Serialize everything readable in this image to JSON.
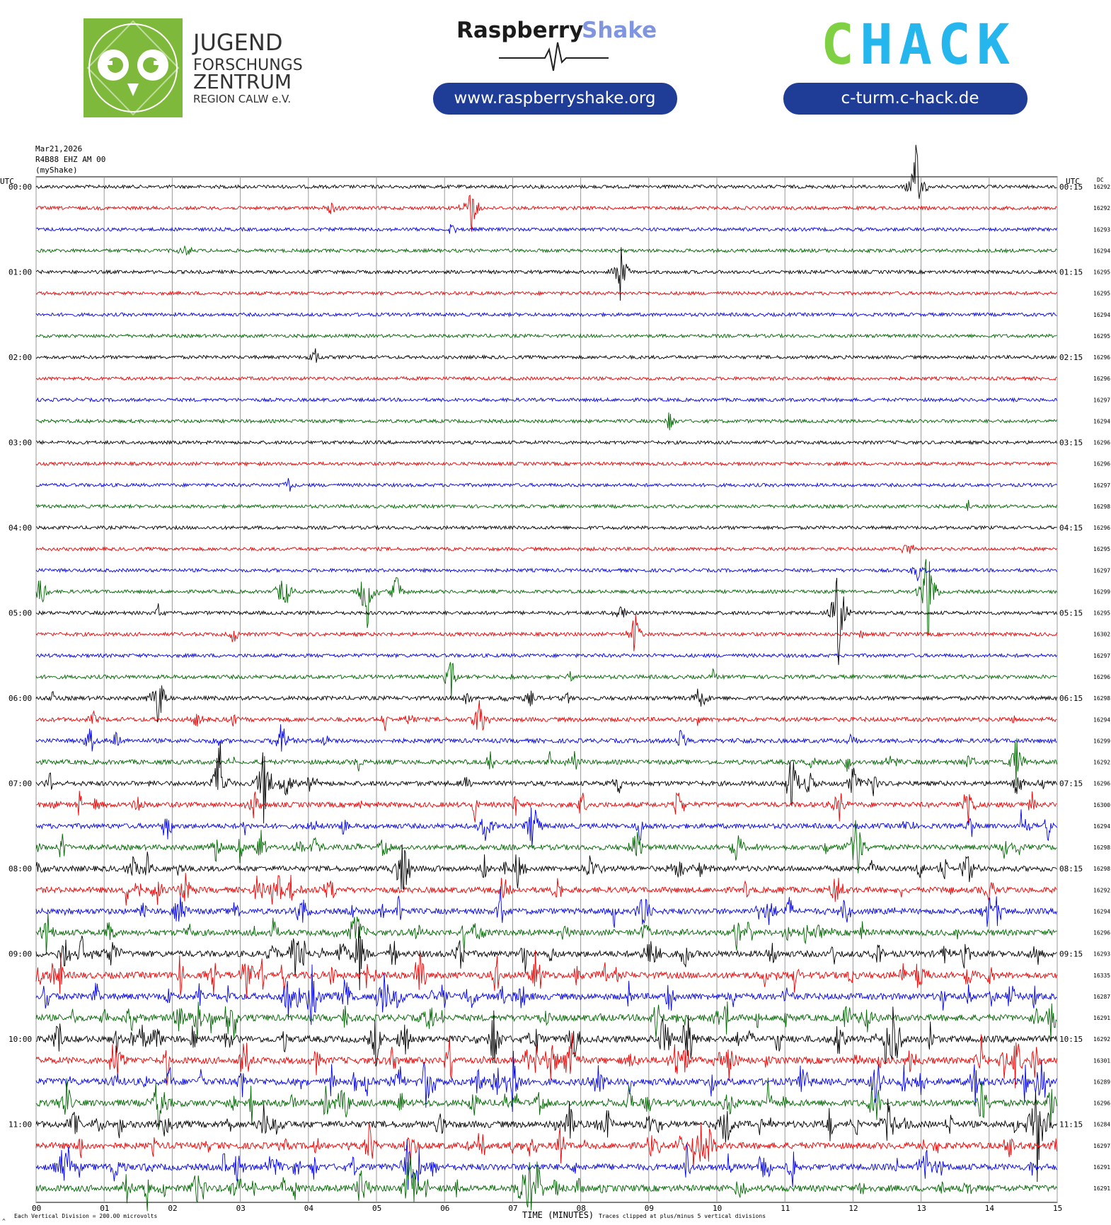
{
  "header": {
    "jfz": {
      "line1": "JUGEND",
      "line2": "FORSCHUNGS",
      "line3": "ZENTRUM",
      "line4": "REGION CALW e.V.",
      "color": "#7fb93b"
    },
    "rs": {
      "brand_a": "Raspberry",
      "brand_b": "Shake",
      "url": "www.raspberryshake.org",
      "accent": "#7f95e0",
      "pill": "#1f3d97"
    },
    "chack": {
      "c": "C",
      "h": "H",
      "a": "A",
      "c2": "C",
      "k": "K",
      "url": "c-turm.c-hack.de",
      "green": "#7fd043",
      "blue": "#25b6ee",
      "pill": "#1f3d97"
    }
  },
  "plot_info": {
    "date": "Mar21,2026",
    "station": "R4B88 EHZ AM 00",
    "source": "(myShake)",
    "left_axis_label": "UTC",
    "right_axis_label": "UTC",
    "dc_label": "DC",
    "x_axis_label": "TIME (MINUTES)",
    "footer_left": "Each Vertical Division =  200.00 microvolts",
    "footer_right": "Traces clipped at plus/minus 5 vertical divisions",
    "footer_mark": "^"
  },
  "chart_data": {
    "type": "line",
    "subtype": "helicorder",
    "xlim": [
      0,
      15
    ],
    "x_ticks": [
      "00",
      "01",
      "02",
      "03",
      "04",
      "05",
      "06",
      "07",
      "08",
      "09",
      "10",
      "11",
      "12",
      "13",
      "14",
      "15"
    ],
    "line_duration_minutes": 15,
    "trace_colors": [
      "#000000",
      "#ee0000",
      "#0000ee",
      "#006600"
    ],
    "left_hour_labels": [
      "00:00",
      "01:00",
      "02:00",
      "03:00",
      "04:00",
      "05:00",
      "06:00",
      "07:00",
      "08:00",
      "09:00",
      "10:00",
      "11:00"
    ],
    "right_hour_labels": [
      "00:15",
      "01:15",
      "02:15",
      "03:15",
      "04:15",
      "05:15",
      "06:15",
      "07:15",
      "08:15",
      "09:15",
      "10:15",
      "11:15"
    ],
    "dc_offsets": [
      16292,
      16292,
      16293,
      16294,
      16295,
      16295,
      16294,
      16295,
      16296,
      16296,
      16297,
      16294,
      16296,
      16296,
      16297,
      16298,
      16296,
      16295,
      16297,
      16299,
      16295,
      16302,
      16297,
      16296,
      16298,
      16294,
      16299,
      16292,
      16296,
      16300,
      16294,
      16298,
      16298,
      16292,
      16294,
      16296,
      16293,
      16335,
      16287,
      16291,
      16292,
      16301,
      16289,
      16296,
      16284,
      16297,
      16291,
      16291
    ],
    "activity": [
      1,
      1,
      1,
      1,
      1,
      1,
      1,
      1,
      1,
      1,
      1,
      1,
      1,
      1,
      1,
      1,
      1,
      1,
      1,
      1,
      1.2,
      1.2,
      1.2,
      1.4,
      1.6,
      1.8,
      1.8,
      2,
      2.2,
      2.4,
      2.4,
      2.6,
      2.8,
      3,
      3,
      3.2,
      3.4,
      3.6,
      3.6,
      3.6,
      3.8,
      3.8,
      4,
      3.8,
      3.8,
      3.6,
      3.6,
      3.6
    ],
    "events": [
      {
        "line": 0,
        "minute": 12.93,
        "amp": 2.2
      },
      {
        "line": 1,
        "minute": 6.38,
        "amp": 1.6
      },
      {
        "line": 1,
        "minute": 4.35,
        "amp": 0.4
      },
      {
        "line": 2,
        "minute": 6.1,
        "amp": 0.3
      },
      {
        "line": 3,
        "minute": 2.2,
        "amp": 0.35
      },
      {
        "line": 4,
        "minute": 8.58,
        "amp": 1.5
      },
      {
        "line": 8,
        "minute": 4.1,
        "amp": 0.45
      },
      {
        "line": 11,
        "minute": 9.3,
        "amp": 0.5
      },
      {
        "line": 14,
        "minute": 3.7,
        "amp": 0.45
      },
      {
        "line": 15,
        "minute": 13.7,
        "amp": 0.4
      },
      {
        "line": 17,
        "minute": 12.8,
        "amp": 0.5
      },
      {
        "line": 18,
        "minute": 12.95,
        "amp": 0.6
      },
      {
        "line": 19,
        "minute": 4.86,
        "amp": 2.2
      },
      {
        "line": 19,
        "minute": 13.1,
        "amp": 2.8
      },
      {
        "line": 19,
        "minute": 0.06,
        "amp": 1
      },
      {
        "line": 19,
        "minute": 3.64,
        "amp": 1.2
      },
      {
        "line": 19,
        "minute": 5.3,
        "amp": 1
      },
      {
        "line": 20,
        "minute": 11.8,
        "amp": 3.2
      },
      {
        "line": 20,
        "minute": 8.6,
        "amp": 0.6
      },
      {
        "line": 21,
        "minute": 8.8,
        "amp": 1.2
      },
      {
        "line": 21,
        "minute": 2.9,
        "amp": 0.5
      },
      {
        "line": 23,
        "minute": 6.1,
        "amp": 1
      },
      {
        "line": 24,
        "minute": 1.8,
        "amp": 1.7
      },
      {
        "line": 24,
        "minute": 9.75,
        "amp": 1
      },
      {
        "line": 25,
        "minute": 6.5,
        "amp": 1.3
      },
      {
        "line": 26,
        "minute": 3.6,
        "amp": 1.4
      },
      {
        "line": 27,
        "minute": 14.4,
        "amp": 1.4
      },
      {
        "line": 28,
        "minute": 2.7,
        "amp": 2.5
      },
      {
        "line": 28,
        "minute": 3.35,
        "amp": 2.3
      },
      {
        "line": 28,
        "minute": 11.1,
        "amp": 1.6
      },
      {
        "line": 29,
        "minute": 13.7,
        "amp": 1.2
      },
      {
        "line": 30,
        "minute": 7.3,
        "amp": 1.5
      },
      {
        "line": 31,
        "minute": 12.05,
        "amp": 2
      },
      {
        "line": 32,
        "minute": 5.4,
        "amp": 2.3
      },
      {
        "line": 33,
        "minute": 3.55,
        "amp": 1
      },
      {
        "line": 34,
        "minute": 8.95,
        "amp": 1.8
      },
      {
        "line": 35,
        "minute": 4.7,
        "amp": 1.4
      },
      {
        "line": 36,
        "minute": 4.75,
        "amp": 1.8
      },
      {
        "line": 37,
        "minute": 3.1,
        "amp": 1.6
      },
      {
        "line": 38,
        "minute": 4.05,
        "amp": 1.6
      },
      {
        "line": 40,
        "minute": 12.6,
        "amp": 2.4
      },
      {
        "line": 41,
        "minute": 9.4,
        "amp": 1.3
      },
      {
        "line": 42,
        "minute": 7.0,
        "amp": 2.5
      },
      {
        "line": 42,
        "minute": 13.0,
        "amp": 0.8
      },
      {
        "line": 44,
        "minute": 14.7,
        "amp": 3.2
      },
      {
        "line": 45,
        "minute": 4.9,
        "amp": 1.3
      },
      {
        "line": 46,
        "minute": 10.7,
        "amp": 1.6
      },
      {
        "line": 47,
        "minute": 5.5,
        "amp": 2.5
      }
    ]
  }
}
